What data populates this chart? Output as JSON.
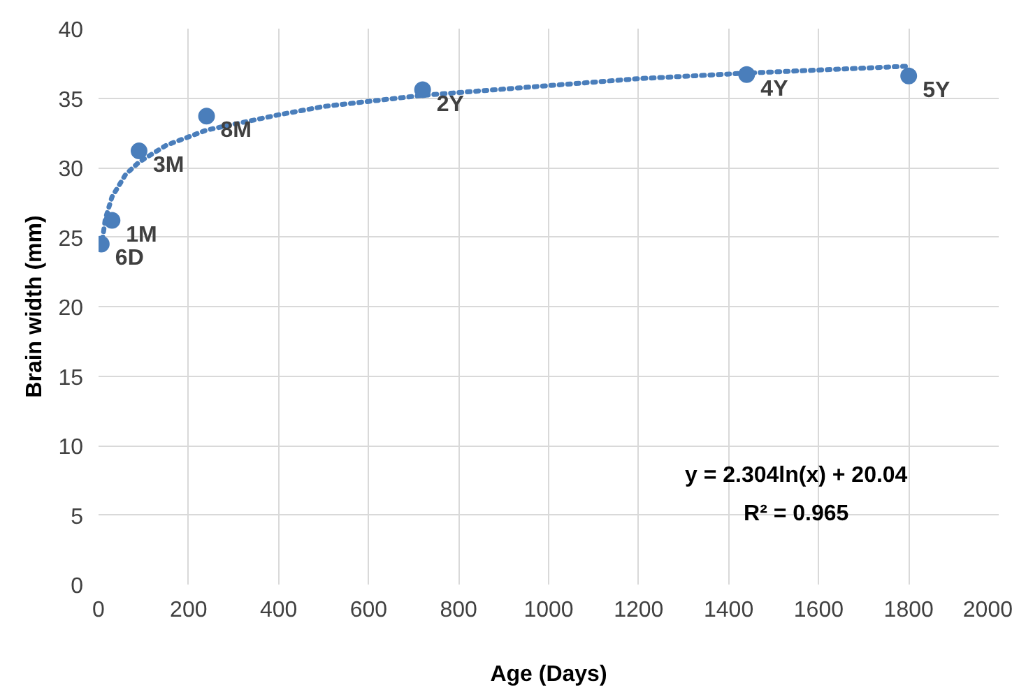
{
  "chart_data": {
    "type": "scatter",
    "xlabel": "Age (Days)",
    "ylabel": "Brain width (mm)",
    "xlim": [
      0,
      2000
    ],
    "xticks": [
      0,
      200,
      400,
      600,
      800,
      1000,
      1200,
      1400,
      1600,
      1800,
      2000
    ],
    "ylim": [
      0,
      40
    ],
    "yticks": [
      0,
      5,
      10,
      15,
      20,
      25,
      30,
      35,
      40
    ],
    "grid": true,
    "marker": "circle",
    "series": [
      {
        "color": "#4a7ebb",
        "x": [
          6,
          30,
          90,
          240,
          720,
          1440,
          1800
        ],
        "values": [
          24.5,
          26.2,
          31.2,
          33.7,
          35.6,
          36.7,
          36.6
        ]
      },
      {
        "type": "line",
        "color": "#4a7ebb",
        "line_style": "dotted",
        "marker": "none",
        "x": [
          6,
          15,
          30,
          60,
          90,
          150,
          240,
          400,
          500,
          720,
          1000,
          1200,
          1440,
          1800
        ],
        "values": [
          24.2,
          26.3,
          27.9,
          29.5,
          30.4,
          31.6,
          32.7,
          33.8,
          34.4,
          35.2,
          35.9,
          36.4,
          36.8,
          37.3
        ]
      }
    ],
    "annotations": [
      {
        "text": "6D",
        "x": 6,
        "y": 24.5
      },
      {
        "text": "1M",
        "x": 30,
        "y": 26.2
      },
      {
        "text": "3M",
        "x": 90,
        "y": 31.2
      },
      {
        "text": "8M",
        "x": 240,
        "y": 33.7
      },
      {
        "text": "2Y",
        "x": 720,
        "y": 35.6
      },
      {
        "text": "4Y",
        "x": 1440,
        "y": 36.7
      },
      {
        "text": "5Y",
        "x": 1800,
        "y": 36.6
      },
      "y = 2.304ln(x) + 20.04",
      "R² = 0.965"
    ]
  }
}
